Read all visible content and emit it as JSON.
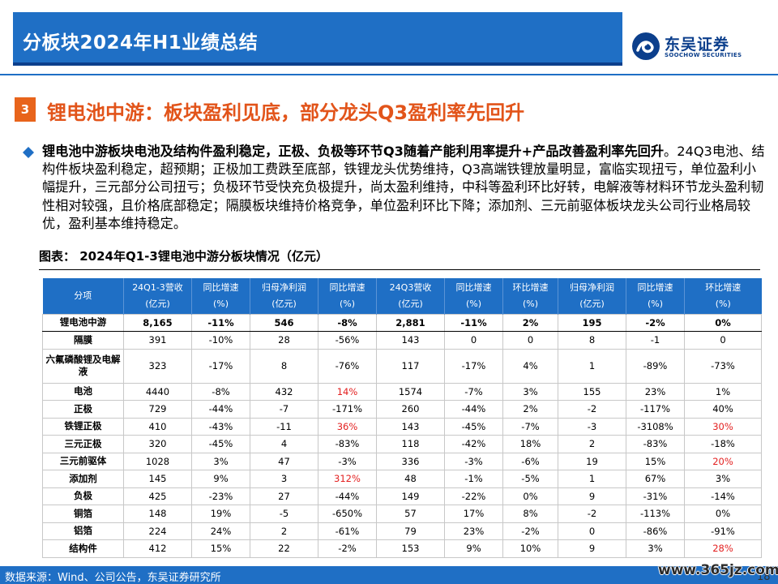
{
  "header": {
    "title": "分板块2024年H1业绩总结",
    "logo_cn": "东吴证券",
    "logo_en": "SOOCHOW SECURITIES"
  },
  "section": {
    "number": "3",
    "title": "锂电池中游：板块盈利见底，部分龙头Q3盈利率先回升"
  },
  "paragraph": {
    "lead": "锂电池中游板块电池及结构件盈利稳定，正极、负极等环节Q3随着产能利用率提升+产品改善盈利率先回升",
    "body": "。24Q3电池、结构件板块盈利稳定，超预期；正极加工费跌至底部，铁锂龙头优势维持，Q3高端铁锂放量明显，富临实现扭亏，单位盈利小幅提升，三元部分公司扭亏；负极环节受快充负极提升，尚太盈利维持，中科等盈利环比好转，电解液等材料环节龙头盈利韧性相对较强，且价格底部稳定；隔膜板块维持价格竞争，单位盈利环比下降；添加剂、三元前驱体板块龙头公司行业格局较优，盈利基本维持稳定。"
  },
  "figure": {
    "caption": "图表：  2024年Q1-3锂电池中游分板块情况（亿元）"
  },
  "table": {
    "headers": [
      [
        "分项"
      ],
      [
        "24Q1-3营收",
        "(亿元)"
      ],
      [
        "同比增速",
        "(%)"
      ],
      [
        "归母净利润",
        "(亿元)"
      ],
      [
        "同比增速",
        "(%)"
      ],
      [
        "24Q3营收",
        "(亿元)"
      ],
      [
        "同比增速",
        "(%)"
      ],
      [
        "环比增速",
        "(%)"
      ],
      [
        "归母净利润",
        "(亿元)"
      ],
      [
        "同比增速",
        "(%)"
      ],
      [
        "环比增速",
        "(%)"
      ]
    ],
    "rows": [
      [
        "锂电池中游",
        "8,165",
        "-11%",
        "546",
        "-8%",
        "2,881",
        "-11%",
        "2%",
        "195",
        "-2%",
        "0%"
      ],
      [
        "隔膜",
        "391",
        "-10%",
        "28",
        "-56%",
        "143",
        "0",
        "0",
        "8",
        "-1",
        "0"
      ],
      [
        "六氟磷酸锂及电解液",
        "323",
        "-17%",
        "8",
        "-76%",
        "117",
        "-17%",
        "4%",
        "1",
        "-89%",
        "-73%"
      ],
      [
        "电池",
        "4440",
        "-8%",
        "432",
        "14%",
        "1574",
        "-7%",
        "3%",
        "155",
        "23%",
        "1%"
      ],
      [
        "正极",
        "729",
        "-44%",
        "-7",
        "-171%",
        "260",
        "-44%",
        "2%",
        "-2",
        "-117%",
        "40%"
      ],
      [
        "铁锂正极",
        "410",
        "-43%",
        "-11",
        "36%",
        "143",
        "-45%",
        "-7%",
        "-3",
        "-3108%",
        "30%"
      ],
      [
        "三元正极",
        "320",
        "-45%",
        "4",
        "-83%",
        "118",
        "-42%",
        "18%",
        "2",
        "-83%",
        "-18%"
      ],
      [
        "三元前驱体",
        "1028",
        "3%",
        "47",
        "-3%",
        "336",
        "-3%",
        "-6%",
        "19",
        "15%",
        "20%"
      ],
      [
        "添加剂",
        "145",
        "9%",
        "3",
        "312%",
        "48",
        "-1%",
        "-5%",
        "1",
        "67%",
        "3%"
      ],
      [
        "负极",
        "425",
        "-23%",
        "27",
        "-44%",
        "149",
        "-22%",
        "0%",
        "9",
        "-31%",
        "-14%"
      ],
      [
        "铜箔",
        "148",
        "19%",
        "-5",
        "-650%",
        "57",
        "17%",
        "8%",
        "-2",
        "-113%",
        "0%"
      ],
      [
        "铝箔",
        "224",
        "24%",
        "2",
        "-61%",
        "79",
        "23%",
        "-2%",
        "0",
        "-86%",
        "-91%"
      ],
      [
        "结构件",
        "412",
        "15%",
        "22",
        "-2%",
        "153",
        "9%",
        "10%",
        "9",
        "3%",
        "28%"
      ]
    ],
    "highlight_color": "#e32020"
  },
  "footer": {
    "source": "数据来源：Wind、公司公告，东吴证券研究所",
    "page_number": "18",
    "watermark": "www.365jz.com"
  },
  "colors": {
    "brand_blue": "#1f6fc5",
    "dark_blue": "#0c3f8c",
    "accent_orange": "#e8641b"
  },
  "icons": {
    "bullet": "diamond-bullet-icon",
    "logo": "soochow-logo-icon"
  }
}
